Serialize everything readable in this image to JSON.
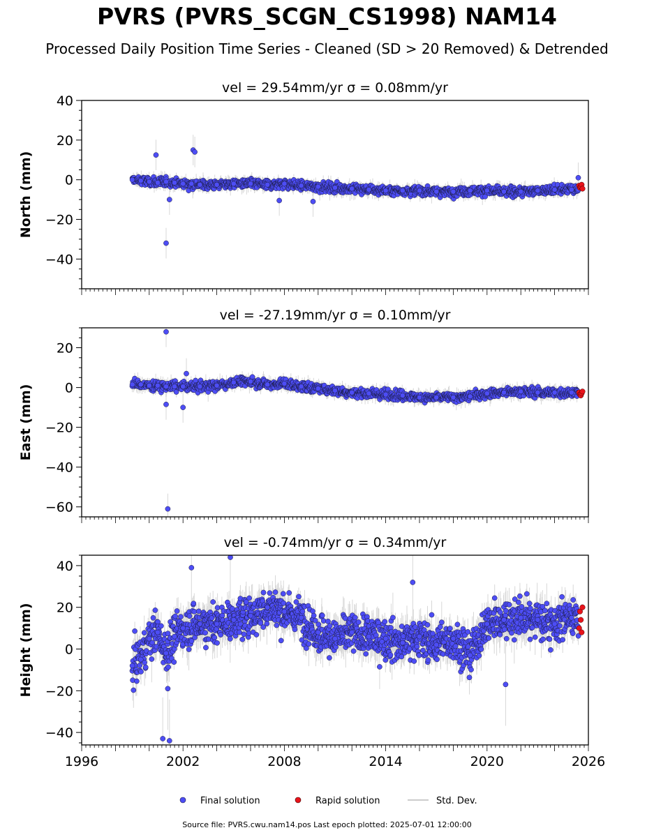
{
  "header": {
    "title": "PVRS (PVRS_SCGN_CS1998) NAM14",
    "subtitle": "Processed Daily Position Time Series - Cleaned (SD > 20 Removed) & Detrended"
  },
  "footer": {
    "source_note": "Source file: PVRS.cwu.nam14.pos  Last epoch plotted: 2025-07-01 12:00:00"
  },
  "colors": {
    "final": "#4d4df5",
    "rapid": "#e8141b",
    "stddev": "#b8b8b8",
    "edge": "#1a1a40"
  },
  "chart_data": [
    {
      "type": "scatter",
      "panel": "north",
      "title": "vel = 29.54mm/yr   σ = 0.08mm/yr",
      "ylabel": "North (mm)",
      "xlim": [
        1996,
        2026
      ],
      "ylim": [
        -55,
        40
      ],
      "yticks": [
        40,
        20,
        0,
        -20,
        -40
      ],
      "xticks": [],
      "grid": false,
      "series": [
        {
          "name": "Final solution",
          "x": [
            1999.0,
            1999.5,
            2000.0,
            2000.5,
            2001.0,
            2001.5,
            2002.0,
            2002.5,
            2003.0,
            2004.0,
            2005.0,
            2006.0,
            2007.0,
            2008.0,
            2009.0,
            2010.0,
            2011.0,
            2012.0,
            2013.0,
            2014.0,
            2015.0,
            2016.0,
            2017.0,
            2018.0,
            2019.0,
            2020.0,
            2021.0,
            2022.0,
            2023.0,
            2024.0,
            2025.0,
            2000.4,
            2001.0,
            2002.6,
            2002.7,
            2001.2,
            2007.7,
            2009.7,
            2025.4
          ],
          "y": [
            0.0,
            -0.5,
            -1.0,
            -1.5,
            -1.0,
            -1.5,
            -2.0,
            -2.0,
            -2.5,
            -2.5,
            -2.0,
            -2.0,
            -2.5,
            -2.0,
            -3.0,
            -3.5,
            -4.0,
            -4.5,
            -5.0,
            -5.5,
            -5.5,
            -5.5,
            -6.0,
            -6.0,
            -5.5,
            -5.5,
            -6.0,
            -6.0,
            -5.5,
            -5.0,
            -5.0,
            12.5,
            -32.0,
            15.0,
            14.0,
            -10.0,
            -10.5,
            -11.0,
            1.0
          ]
        },
        {
          "name": "Rapid solution",
          "x": [
            2025.45,
            2025.5,
            2025.55,
            2025.6,
            2025.65
          ],
          "y": [
            -3.0,
            -4.0,
            -3.5,
            -2.5,
            -4.5
          ]
        }
      ]
    },
    {
      "type": "scatter",
      "panel": "east",
      "title": "vel = -27.19mm/yr   σ = 0.10mm/yr",
      "ylabel": "East (mm)",
      "xlim": [
        1996,
        2026
      ],
      "ylim": [
        -65,
        30
      ],
      "yticks": [
        20,
        0,
        -20,
        -40,
        -60
      ],
      "xticks": [],
      "grid": false,
      "series": [
        {
          "name": "Final solution",
          "x": [
            1999.0,
            1999.5,
            2000.0,
            2000.5,
            2001.0,
            2001.5,
            2002.0,
            2003.0,
            2004.0,
            2005.0,
            2006.0,
            2007.0,
            2008.0,
            2009.0,
            2010.0,
            2011.0,
            2012.0,
            2013.0,
            2014.0,
            2015.0,
            2016.0,
            2017.0,
            2018.0,
            2019.0,
            2020.0,
            2021.0,
            2022.0,
            2023.0,
            2024.0,
            2025.0,
            2001.0,
            2001.1,
            2002.0,
            2002.2,
            2001.0
          ],
          "y": [
            1.5,
            1.5,
            1.0,
            1.0,
            0.5,
            0.5,
            0.5,
            0.5,
            1.0,
            2.5,
            3.0,
            1.5,
            2.0,
            0.5,
            -0.5,
            -1.5,
            -2.5,
            -3.0,
            -3.5,
            -4.0,
            -5.0,
            -5.0,
            -5.0,
            -4.5,
            -3.0,
            -2.5,
            -2.0,
            -2.5,
            -2.5,
            -2.5,
            28.0,
            -61.0,
            -10.0,
            7.0,
            -8.5
          ]
        },
        {
          "name": "Rapid solution",
          "x": [
            2025.45,
            2025.5,
            2025.55,
            2025.6,
            2025.65
          ],
          "y": [
            -2.5,
            -3.5,
            -4.0,
            -3.0,
            -2.0
          ]
        }
      ]
    },
    {
      "type": "scatter",
      "panel": "height",
      "title": "vel = -0.74mm/yr   σ = 0.34mm/yr",
      "ylabel": "Height (mm)",
      "xlim": [
        1996,
        2026
      ],
      "ylim": [
        -46,
        45
      ],
      "yticks": [
        40,
        20,
        0,
        -20,
        -40
      ],
      "xticks": [
        1996,
        2002,
        2008,
        2014,
        2020,
        2026
      ],
      "grid": false,
      "series": [
        {
          "name": "Final solution",
          "x": [
            1999.0,
            1999.5,
            2000.0,
            2000.5,
            2001.0,
            2001.5,
            2002.0,
            2003.0,
            2004.0,
            2005.0,
            2006.0,
            2007.0,
            2008.0,
            2009.0,
            2010.0,
            2011.0,
            2012.0,
            2013.0,
            2014.0,
            2015.0,
            2016.0,
            2017.0,
            2018.0,
            2019.0,
            2020.0,
            2021.0,
            2022.0,
            2023.0,
            2024.0,
            2025.0,
            2000.8,
            2001.2,
            2004.8,
            2002.5,
            2015.6,
            2021.1,
            2001.1
          ],
          "y": [
            -8.0,
            -5.0,
            5.0,
            8.0,
            -2.0,
            6.0,
            10.0,
            12.0,
            12.0,
            14.0,
            16.0,
            20.0,
            18.0,
            15.0,
            8.0,
            5.0,
            8.0,
            6.0,
            5.0,
            3.0,
            6.0,
            2.0,
            5.0,
            -3.0,
            12.0,
            14.0,
            15.0,
            14.0,
            12.0,
            15.0,
            -43.0,
            -44.0,
            44.0,
            39.0,
            32.0,
            -17.0,
            -19.0
          ]
        },
        {
          "name": "Rapid solution",
          "x": [
            2025.45,
            2025.5,
            2025.55,
            2025.6,
            2025.65
          ],
          "y": [
            10.0,
            18.0,
            14.0,
            8.0,
            20.0
          ]
        }
      ]
    }
  ],
  "legend": {
    "items": [
      {
        "label": "Final solution"
      },
      {
        "label": "Rapid solution"
      },
      {
        "label": "Std. Dev."
      }
    ]
  }
}
